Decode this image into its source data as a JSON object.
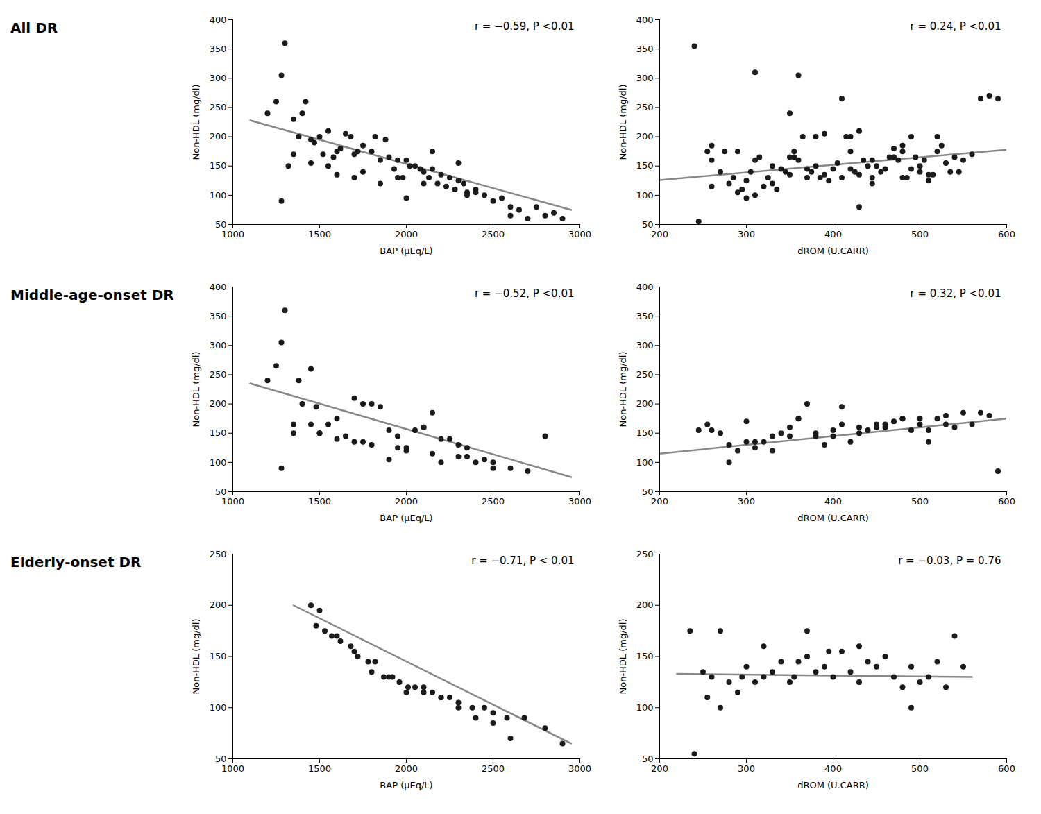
{
  "chart_data": [
    {
      "type": "scatter",
      "title": "All DR",
      "xlabel": "BAP (μEq/L)",
      "ylabel": "Non-HDL (mg/dl)",
      "annotation": "r = −0.59, P <0.01",
      "xlim": [
        1000,
        3000
      ],
      "ylim": [
        50,
        400
      ],
      "xticks": [
        1000,
        1500,
        2000,
        2500,
        3000
      ],
      "yticks": [
        50,
        100,
        150,
        200,
        250,
        300,
        350,
        400
      ],
      "grid": false,
      "series": [
        {
          "type": "scatter",
          "color": "#1a1a1a",
          "x": [
            1200,
            1250,
            1280,
            1300,
            1320,
            1350,
            1380,
            1400,
            1420,
            1450,
            1470,
            1500,
            1520,
            1550,
            1580,
            1600,
            1620,
            1650,
            1680,
            1700,
            1720,
            1750,
            1800,
            1820,
            1850,
            1880,
            1900,
            1930,
            1950,
            1980,
            2000,
            2020,
            2050,
            2080,
            2100,
            2130,
            2150,
            2180,
            2200,
            2230,
            2250,
            2280,
            2300,
            2330,
            2350,
            2400,
            2450,
            2500,
            2550,
            2600,
            2650,
            2700,
            2750,
            2800,
            2850,
            2900,
            1280,
            1450,
            1600,
            1700,
            1850,
            2000,
            2150,
            2300,
            2400,
            2600,
            1350,
            1550,
            1750,
            1950,
            2100,
            2350
          ],
          "values": [
            240,
            260,
            305,
            360,
            150,
            230,
            200,
            240,
            260,
            195,
            190,
            200,
            170,
            210,
            165,
            175,
            180,
            205,
            200,
            170,
            175,
            185,
            175,
            200,
            160,
            195,
            165,
            145,
            160,
            130,
            160,
            150,
            150,
            145,
            140,
            130,
            145,
            120,
            135,
            115,
            130,
            110,
            125,
            120,
            105,
            110,
            100,
            90,
            95,
            65,
            75,
            60,
            80,
            65,
            70,
            60,
            90,
            155,
            135,
            130,
            120,
            95,
            175,
            155,
            105,
            80,
            170,
            150,
            140,
            130,
            120,
            100
          ]
        },
        {
          "type": "line",
          "color": "#888888",
          "x": [
            1100,
            2950
          ],
          "values": [
            228,
            75
          ]
        }
      ]
    },
    {
      "type": "scatter",
      "xlabel": "dROM (U.CARR)",
      "ylabel": "Non-HDL (mg/dl)",
      "annotation": "r = 0.24, P <0.01",
      "xlim": [
        200,
        600
      ],
      "ylim": [
        50,
        400
      ],
      "xticks": [
        200,
        300,
        400,
        500,
        600
      ],
      "yticks": [
        50,
        100,
        150,
        200,
        250,
        300,
        350,
        400
      ],
      "grid": false,
      "series": [
        {
          "type": "scatter",
          "color": "#1a1a1a",
          "x": [
            245,
            255,
            260,
            270,
            275,
            280,
            285,
            290,
            295,
            300,
            305,
            310,
            315,
            320,
            325,
            330,
            335,
            340,
            345,
            350,
            355,
            360,
            365,
            370,
            375,
            380,
            385,
            390,
            395,
            400,
            405,
            410,
            415,
            420,
            425,
            430,
            435,
            440,
            445,
            450,
            455,
            460,
            465,
            470,
            475,
            480,
            485,
            490,
            495,
            500,
            505,
            510,
            515,
            520,
            525,
            530,
            535,
            540,
            545,
            550,
            560,
            570,
            580,
            590,
            240,
            310,
            360,
            410,
            430,
            480,
            510,
            420,
            350,
            290,
            470,
            380,
            260,
            330,
            390,
            445,
            490,
            520,
            355,
            300,
            445,
            370,
            430,
            500,
            310,
            260,
            420,
            350,
            480
          ],
          "values": [
            55,
            175,
            160,
            140,
            175,
            120,
            130,
            105,
            110,
            125,
            140,
            100,
            165,
            115,
            130,
            120,
            110,
            145,
            140,
            135,
            165,
            160,
            200,
            145,
            140,
            150,
            130,
            135,
            125,
            145,
            155,
            130,
            200,
            145,
            140,
            135,
            160,
            150,
            130,
            150,
            140,
            145,
            165,
            165,
            160,
            175,
            130,
            145,
            165,
            150,
            160,
            125,
            135,
            175,
            185,
            155,
            140,
            165,
            140,
            160,
            170,
            265,
            270,
            265,
            355,
            310,
            305,
            265,
            210,
            185,
            135,
            200,
            240,
            175,
            180,
            200,
            185,
            150,
            205,
            160,
            200,
            200,
            175,
            95,
            120,
            130,
            80,
            140,
            160,
            115,
            175,
            165,
            130
          ]
        },
        {
          "type": "line",
          "color": "#888888",
          "x": [
            200,
            600
          ],
          "values": [
            126,
            178
          ]
        }
      ]
    },
    {
      "type": "scatter",
      "title": "Middle-age-onset DR",
      "xlabel": "BAP (μEq/L)",
      "ylabel": "Non-HDL (mg/dl)",
      "annotation": "r = −0.52, P <0.01",
      "xlim": [
        1000,
        3000
      ],
      "ylim": [
        50,
        400
      ],
      "xticks": [
        1000,
        1500,
        2000,
        2500,
        3000
      ],
      "yticks": [
        50,
        100,
        150,
        200,
        250,
        300,
        350,
        400
      ],
      "grid": false,
      "series": [
        {
          "type": "scatter",
          "color": "#1a1a1a",
          "x": [
            1200,
            1250,
            1280,
            1300,
            1350,
            1380,
            1400,
            1450,
            1480,
            1500,
            1550,
            1600,
            1650,
            1700,
            1750,
            1800,
            1850,
            1900,
            1950,
            2000,
            2050,
            2100,
            2150,
            2200,
            2250,
            2300,
            2350,
            2400,
            2450,
            2500,
            2600,
            2700,
            2800,
            1280,
            1500,
            1700,
            1900,
            2100,
            2300,
            2500,
            1350,
            1600,
            1800,
            2000,
            2200,
            1450,
            1750,
            1950,
            2150,
            2350
          ],
          "values": [
            240,
            265,
            305,
            360,
            150,
            240,
            200,
            260,
            195,
            150,
            165,
            175,
            145,
            210,
            200,
            200,
            195,
            155,
            145,
            125,
            155,
            160,
            185,
            140,
            140,
            130,
            125,
            100,
            105,
            100,
            90,
            85,
            145,
            90,
            150,
            135,
            105,
            160,
            110,
            90,
            165,
            140,
            130,
            120,
            100,
            165,
            135,
            125,
            115,
            110
          ]
        },
        {
          "type": "line",
          "color": "#888888",
          "x": [
            1100,
            2950
          ],
          "values": [
            235,
            75
          ]
        }
      ]
    },
    {
      "type": "scatter",
      "xlabel": "dROM (U.CARR)",
      "ylabel": "Non-HDL (mg/dl)",
      "annotation": "r = 0.32, P <0.01",
      "xlim": [
        200,
        600
      ],
      "ylim": [
        50,
        400
      ],
      "xticks": [
        200,
        300,
        400,
        500,
        600
      ],
      "yticks": [
        50,
        100,
        150,
        200,
        250,
        300,
        350,
        400
      ],
      "grid": false,
      "series": [
        {
          "type": "scatter",
          "color": "#1a1a1a",
          "x": [
            245,
            255,
            270,
            280,
            290,
            300,
            310,
            320,
            330,
            340,
            350,
            360,
            370,
            380,
            390,
            400,
            410,
            420,
            430,
            440,
            450,
            460,
            470,
            480,
            490,
            500,
            510,
            520,
            530,
            540,
            550,
            560,
            570,
            580,
            590,
            260,
            310,
            360,
            410,
            460,
            510,
            280,
            330,
            380,
            430,
            480,
            530,
            300,
            350,
            400,
            450,
            500
          ],
          "values": [
            155,
            165,
            150,
            130,
            120,
            135,
            135,
            135,
            120,
            150,
            160,
            175,
            200,
            145,
            130,
            155,
            165,
            135,
            150,
            155,
            165,
            160,
            170,
            175,
            155,
            165,
            135,
            175,
            165,
            160,
            185,
            165,
            185,
            180,
            85,
            155,
            125,
            175,
            195,
            165,
            155,
            100,
            145,
            150,
            160,
            175,
            180,
            170,
            145,
            145,
            160,
            175
          ]
        },
        {
          "type": "line",
          "color": "#888888",
          "x": [
            200,
            600
          ],
          "values": [
            115,
            175
          ]
        }
      ]
    },
    {
      "type": "scatter",
      "title": "Elderly-onset DR",
      "xlabel": "BAP (μEq/L)",
      "ylabel": "Non-HDL (mg/dl)",
      "annotation": "r = −0.71, P < 0.01",
      "xlim": [
        1000,
        3000
      ],
      "ylim": [
        50,
        250
      ],
      "xticks": [
        1000,
        1500,
        2000,
        2500,
        3000
      ],
      "yticks": [
        50,
        100,
        150,
        200,
        250
      ],
      "grid": false,
      "series": [
        {
          "type": "scatter",
          "color": "#1a1a1a",
          "x": [
            1450,
            1480,
            1530,
            1570,
            1620,
            1680,
            1720,
            1780,
            1820,
            1870,
            1920,
            1960,
            2010,
            2050,
            2100,
            2150,
            2200,
            2250,
            2300,
            2380,
            2450,
            2500,
            2580,
            2680,
            2800,
            2900,
            1500,
            1700,
            1900,
            2100,
            2300,
            2500,
            1600,
            1800,
            2000,
            2200,
            2400,
            2600
          ],
          "values": [
            200,
            180,
            175,
            170,
            165,
            160,
            150,
            145,
            145,
            130,
            130,
            125,
            120,
            120,
            115,
            115,
            110,
            110,
            105,
            100,
            100,
            95,
            90,
            90,
            80,
            65,
            195,
            155,
            130,
            120,
            100,
            85,
            170,
            135,
            115,
            110,
            90,
            70
          ]
        },
        {
          "type": "line",
          "color": "#888888",
          "x": [
            1350,
            2950
          ],
          "values": [
            200,
            65
          ]
        }
      ]
    },
    {
      "type": "scatter",
      "xlabel": "dROM (U.CARR)",
      "ylabel": "Non-HDL (mg/dl)",
      "annotation": "r = −0.03, P = 0.76",
      "xlim": [
        200,
        600
      ],
      "ylim": [
        50,
        250
      ],
      "xticks": [
        200,
        300,
        400,
        500,
        600
      ],
      "yticks": [
        50,
        100,
        150,
        200,
        250
      ],
      "grid": false,
      "series": [
        {
          "type": "scatter",
          "color": "#1a1a1a",
          "x": [
            235,
            240,
            250,
            255,
            260,
            270,
            280,
            290,
            295,
            300,
            310,
            320,
            330,
            340,
            350,
            355,
            360,
            370,
            380,
            390,
            395,
            400,
            410,
            420,
            430,
            440,
            450,
            460,
            470,
            480,
            490,
            500,
            510,
            520,
            530,
            540,
            550,
            270,
            320,
            370,
            430,
            490
          ],
          "values": [
            175,
            55,
            135,
            110,
            130,
            100,
            125,
            115,
            130,
            140,
            125,
            130,
            135,
            145,
            125,
            130,
            145,
            150,
            135,
            140,
            155,
            130,
            155,
            135,
            125,
            145,
            140,
            150,
            130,
            120,
            140,
            125,
            130,
            145,
            120,
            170,
            140,
            175,
            160,
            175,
            160,
            100
          ]
        },
        {
          "type": "line",
          "color": "#888888",
          "x": [
            220,
            560
          ],
          "values": [
            133,
            130
          ]
        }
      ]
    }
  ]
}
